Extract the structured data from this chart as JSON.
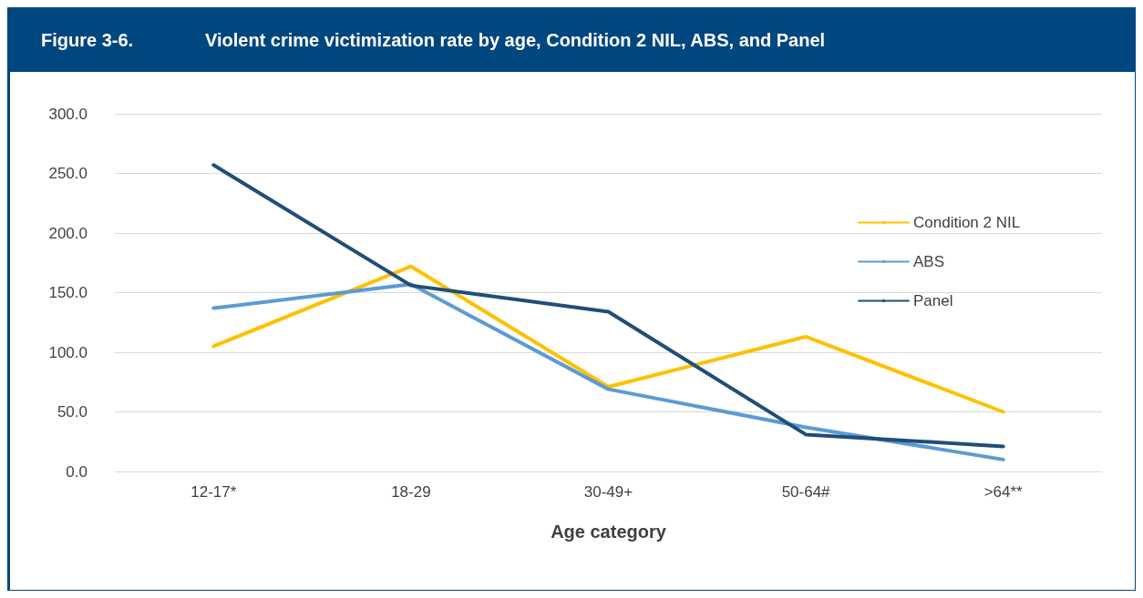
{
  "chart_data": {
    "type": "line",
    "title": "Figure 3-6.",
    "subtitle": "Violent crime victimization rate by age, Condition 2 NIL, ABS, and Panel",
    "xlabel": "Age category",
    "categories": [
      "12-17*",
      "18-29",
      "30-49+",
      "50-64#",
      ">64**"
    ],
    "series": [
      {
        "name": "Condition 2 NIL",
        "color": "#ffc000",
        "values": [
          105,
          172,
          71,
          113,
          50
        ]
      },
      {
        "name": "ABS",
        "color": "#5b9bd5",
        "values": [
          137,
          157,
          69,
          37,
          10
        ]
      },
      {
        "name": "Panel",
        "color": "#1f4e79",
        "values": [
          257,
          156,
          134,
          31,
          21
        ]
      }
    ],
    "ylim": [
      0,
      300
    ],
    "yticks": [
      {
        "value": 0,
        "label": "0.0"
      },
      {
        "value": 50,
        "label": "50.0"
      },
      {
        "value": 100,
        "label": "100.0"
      },
      {
        "value": 150,
        "label": "150.0"
      },
      {
        "value": 200,
        "label": "200.0"
      },
      {
        "value": 250,
        "label": "250.0"
      },
      {
        "value": 300,
        "label": "300.0"
      }
    ],
    "grid": "y",
    "legend": "right",
    "marker": "none",
    "line_style": "solid"
  }
}
